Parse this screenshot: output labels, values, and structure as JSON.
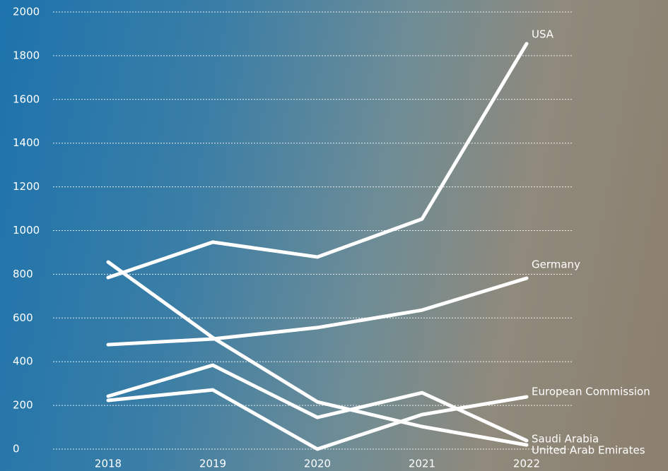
{
  "chart_data": {
    "type": "line",
    "categories": [
      "2018",
      "2019",
      "2020",
      "2021",
      "2022"
    ],
    "series": [
      {
        "name": "USA",
        "color": "#ffffff",
        "values": [
          785,
          947,
          879,
          1053,
          1855
        ]
      },
      {
        "name": "Germany",
        "color": "#ffffff",
        "values": [
          478,
          504,
          556,
          636,
          782
        ]
      },
      {
        "name": "European Commission",
        "color": "#ffffff",
        "values": [
          223,
          271,
          0,
          158,
          239
        ]
      },
      {
        "name": "Saudi Arabia",
        "color": "#ffffff",
        "values": [
          242,
          384,
          145,
          258,
          39
        ]
      },
      {
        "name": "United Arab Emirates",
        "color": "#ffffff",
        "values": [
          856,
          510,
          216,
          103,
          19
        ]
      }
    ],
    "ylim": [
      0,
      2000
    ],
    "yticks": [
      0,
      200,
      400,
      600,
      800,
      1000,
      1200,
      1400,
      1600,
      1800,
      2000
    ],
    "grid": true
  }
}
